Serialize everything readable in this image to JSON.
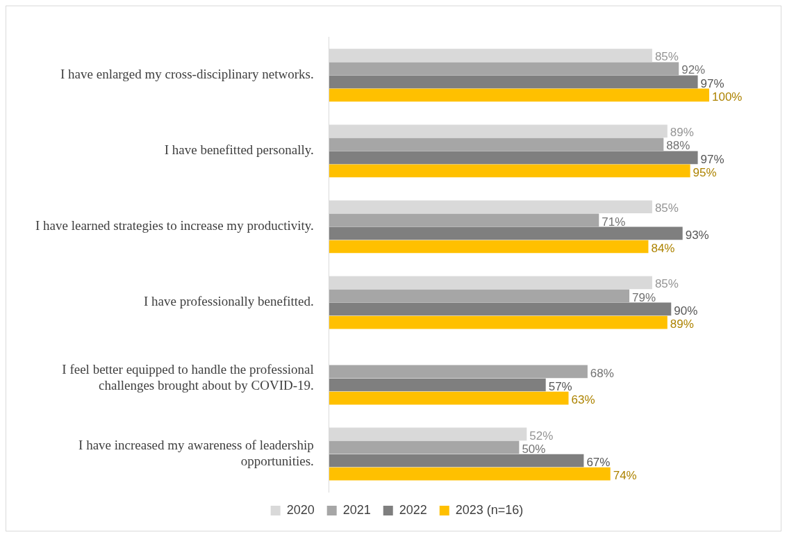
{
  "chart_data": {
    "type": "bar",
    "orientation": "horizontal",
    "categories": [
      "I have enlarged my cross-disciplinary networks.",
      "I have benefitted personally.",
      "I have learned strategies to increase my productivity.",
      "I have professionally benefitted.",
      "I feel better equipped to handle the professional challenges brought about by COVID-19.",
      "I have increased my awareness of leadership opportunities."
    ],
    "series": [
      {
        "name": "2020",
        "color": "#d9d9d9",
        "values": [
          85,
          89,
          85,
          85,
          null,
          52
        ],
        "value_labels": [
          "85%",
          "89%",
          "85%",
          "85%",
          null,
          "52%"
        ]
      },
      {
        "name": "2021",
        "color": "#a6a6a6",
        "values": [
          92,
          88,
          71,
          79,
          68,
          50
        ],
        "value_labels": [
          "92%",
          "88%",
          "71%",
          "79%",
          "68%",
          "50%"
        ]
      },
      {
        "name": "2022",
        "color": "#7f7f7f",
        "values": [
          97,
          97,
          93,
          90,
          57,
          67
        ],
        "value_labels": [
          "97%",
          "97%",
          "93%",
          "90%",
          "57%",
          "67%"
        ]
      },
      {
        "name": "2023 (n=16)",
        "color": "#ffc000",
        "values": [
          100,
          95,
          84,
          89,
          63,
          74
        ],
        "value_labels": [
          "100%",
          "95%",
          "84%",
          "89%",
          "63%",
          "74%"
        ]
      }
    ],
    "legend": "bottom"
  }
}
